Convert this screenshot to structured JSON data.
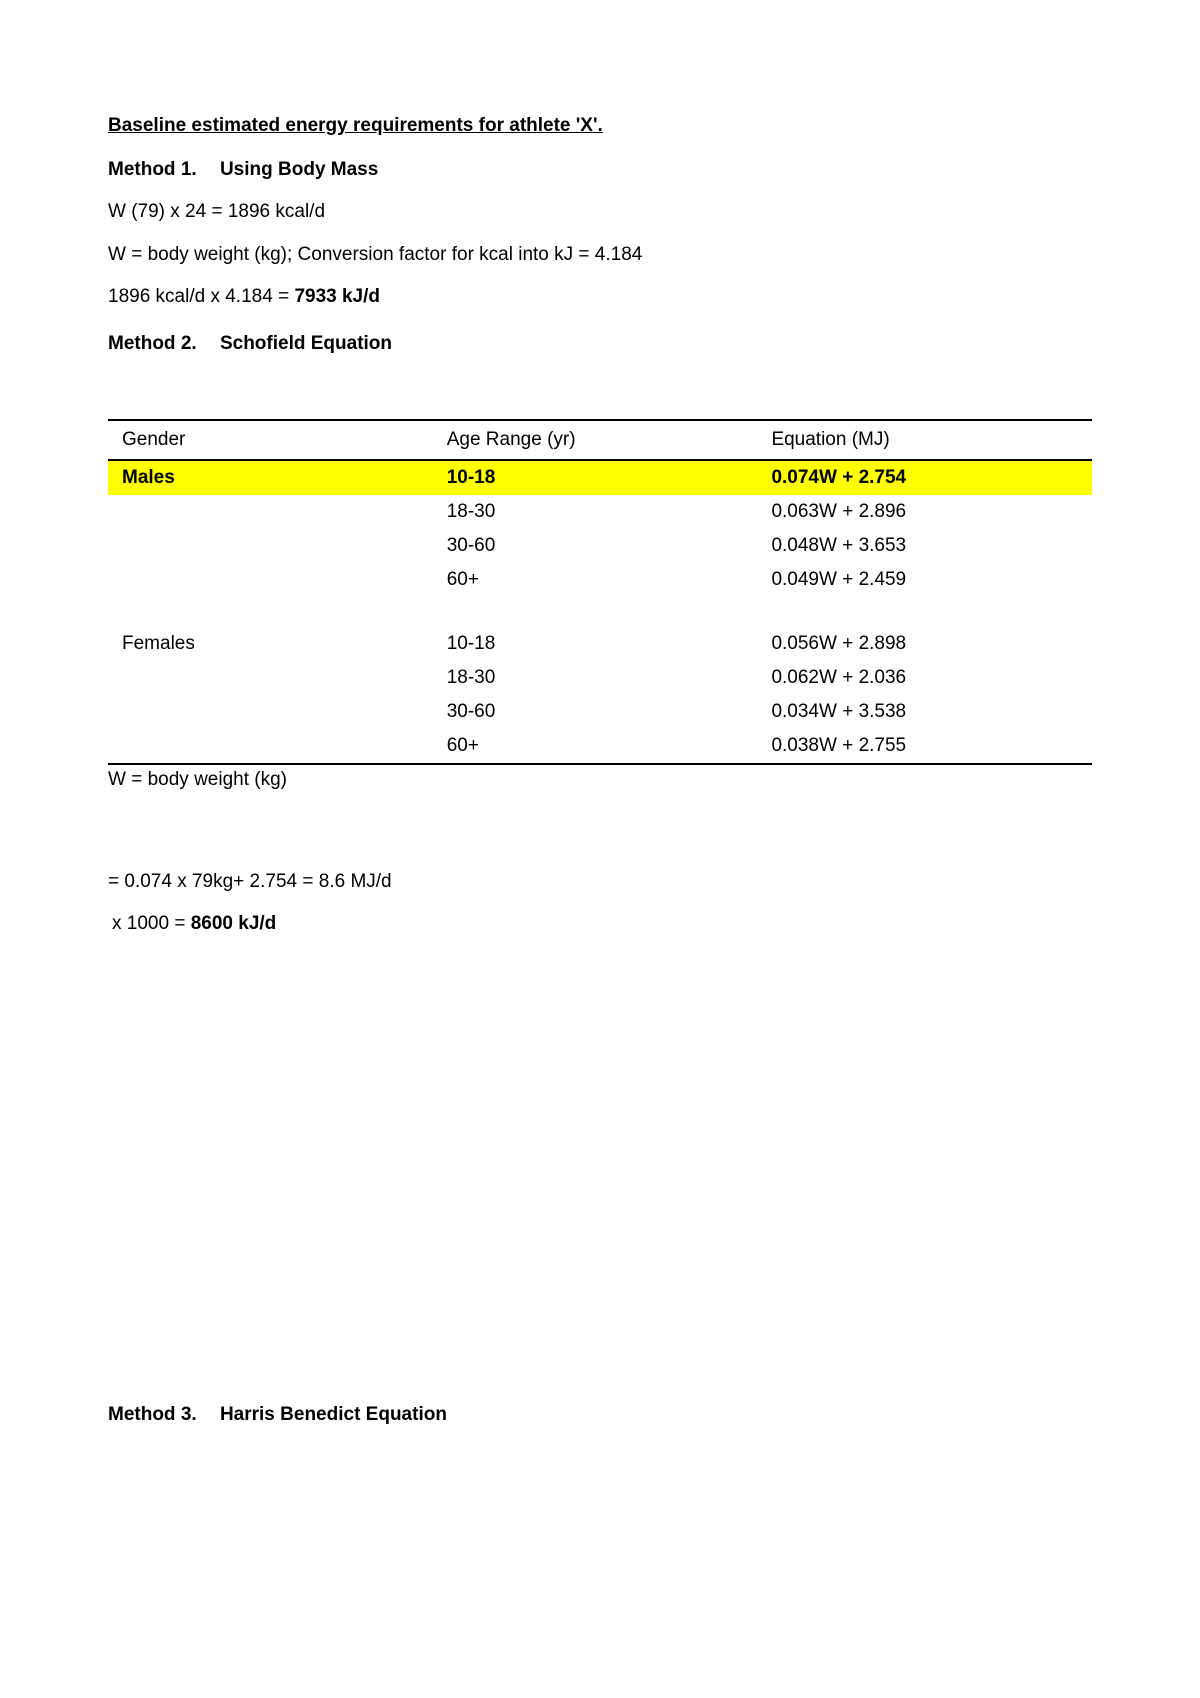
{
  "title": "Baseline estimated energy requirements for athlete 'X'.",
  "method1": {
    "heading_prefix": "Method 1.",
    "heading_name": "Using Body Mass",
    "line1": "W (79) x 24   = 1896 kcal/d",
    "line2": "W = body weight (kg); Conversion factor for kcal into kJ = 4.184",
    "line3_prefix": "1896 kcal/d x 4.184 = ",
    "line3_result": "7933 kJ/d"
  },
  "method2": {
    "heading_prefix": "Method 2.",
    "heading_name": "Schofield Equation",
    "table": {
      "headers": {
        "gender": "Gender",
        "age": "Age Range (yr)",
        "equation": "Equation (MJ)"
      },
      "highlight_color": "#ffff00",
      "rows": [
        {
          "gender": "Males",
          "age": "10-18",
          "equation": "0.074W + 2.754",
          "highlight": true
        },
        {
          "gender": "",
          "age": "18-30",
          "equation": "0.063W + 2.896"
        },
        {
          "gender": "",
          "age": "30-60",
          "equation": "0.048W + 3.653"
        },
        {
          "gender": "",
          "age": "60+",
          "equation": "0.049W + 2.459"
        },
        {
          "spacer": true
        },
        {
          "gender": "Females",
          "age": "10-18",
          "equation": "0.056W + 2.898"
        },
        {
          "gender": "",
          "age": "18-30",
          "equation": "0.062W + 2.036"
        },
        {
          "gender": "",
          "age": "30-60",
          "equation": "0.034W + 3.538"
        },
        {
          "gender": "",
          "age": "60+",
          "equation": "0.038W + 2.755"
        }
      ]
    },
    "note": "W = body weight (kg)",
    "calc1": "= 0.074 x 79kg+ 2.754 = 8.6 MJ/d",
    "calc2_prefix": " x 1000     = ",
    "calc2_result": "8600 kJ/d"
  },
  "method3": {
    "heading_prefix": "Method 3.",
    "heading_name": "Harris Benedict Equation"
  }
}
